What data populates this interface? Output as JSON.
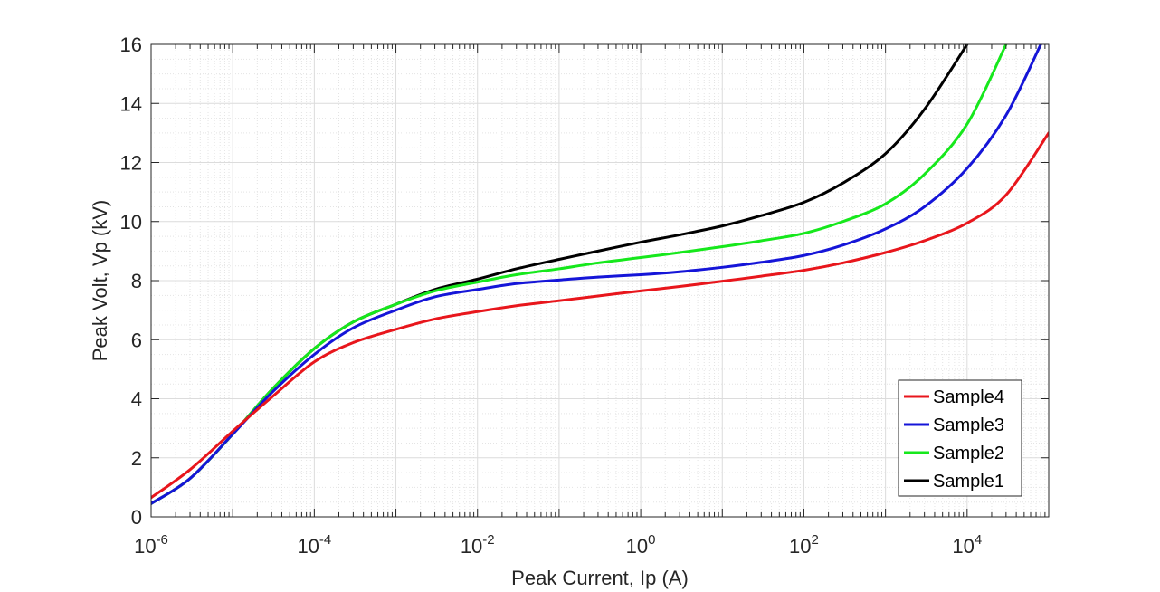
{
  "chart_data": {
    "type": "line",
    "title": "",
    "xlabel": "Peak Current, Ip (A)",
    "ylabel": "Peak Volt, Vp (kV)",
    "xscale": "log",
    "xlim": [
      1e-06,
      100000
    ],
    "ylim": [
      0,
      16
    ],
    "grid": "on (major and minor)",
    "legend_placement": "bottom-right",
    "x_ticks": [
      {
        "base": "10",
        "exp": "-6",
        "value": 1e-06
      },
      {
        "base": "10",
        "exp": "-4",
        "value": 0.0001
      },
      {
        "base": "10",
        "exp": "-2",
        "value": 0.01
      },
      {
        "base": "10",
        "exp": "0",
        "value": 1
      },
      {
        "base": "10",
        "exp": "2",
        "value": 100
      },
      {
        "base": "10",
        "exp": "4",
        "value": 10000
      }
    ],
    "y_ticks": [
      "0",
      "2",
      "4",
      "6",
      "8",
      "10",
      "12",
      "14",
      "16"
    ],
    "series": [
      {
        "name": "Sample4",
        "color": "#e8161c",
        "x": [
          1e-06,
          3e-06,
          1e-05,
          3e-05,
          0.0001,
          0.0003,
          0.001,
          0.003,
          0.01,
          0.03,
          0.1,
          0.3,
          1,
          3,
          10,
          30,
          100,
          300,
          1000,
          3000,
          10000,
          30000,
          100000
        ],
        "y": [
          0.65,
          1.6,
          2.9,
          4.05,
          5.25,
          5.9,
          6.35,
          6.7,
          6.95,
          7.15,
          7.32,
          7.48,
          7.65,
          7.8,
          7.98,
          8.15,
          8.35,
          8.6,
          8.95,
          9.35,
          9.95,
          10.9,
          13.0
        ]
      },
      {
        "name": "Sample3",
        "color": "#1515d8",
        "x": [
          1e-06,
          3e-06,
          1e-05,
          3e-05,
          0.0001,
          0.0003,
          0.001,
          0.003,
          0.01,
          0.03,
          0.1,
          0.3,
          1,
          3,
          10,
          30,
          100,
          300,
          1000,
          3000,
          10000,
          30000,
          80000
        ],
        "y": [
          0.45,
          1.3,
          2.8,
          4.2,
          5.5,
          6.4,
          7.0,
          7.45,
          7.7,
          7.9,
          8.02,
          8.12,
          8.2,
          8.3,
          8.45,
          8.62,
          8.85,
          9.2,
          9.75,
          10.5,
          11.8,
          13.6,
          16.0
        ]
      },
      {
        "name": "Sample2",
        "color": "#16e81c",
        "x": [
          1e-06,
          3e-06,
          1e-05,
          3e-05,
          0.0001,
          0.0003,
          0.001,
          0.003,
          0.01,
          0.03,
          0.1,
          0.3,
          1,
          3,
          10,
          30,
          100,
          300,
          1000,
          3000,
          10000,
          30000
        ],
        "y": [
          0.45,
          1.3,
          2.8,
          4.3,
          5.7,
          6.6,
          7.2,
          7.65,
          7.95,
          8.2,
          8.4,
          8.6,
          8.78,
          8.95,
          9.15,
          9.35,
          9.6,
          10.0,
          10.6,
          11.6,
          13.3,
          16.0
        ]
      },
      {
        "name": "Sample1",
        "color": "#000000",
        "x": [
          1e-06,
          3e-06,
          1e-05,
          3e-05,
          0.0001,
          0.0003,
          0.001,
          0.003,
          0.01,
          0.03,
          0.1,
          0.3,
          1,
          3,
          10,
          30,
          100,
          300,
          1000,
          3000,
          10000
        ],
        "y": [
          0.45,
          1.3,
          2.8,
          4.3,
          5.7,
          6.6,
          7.2,
          7.7,
          8.05,
          8.4,
          8.72,
          9.0,
          9.3,
          9.55,
          9.85,
          10.2,
          10.65,
          11.3,
          12.3,
          13.8,
          16.0
        ]
      }
    ]
  }
}
